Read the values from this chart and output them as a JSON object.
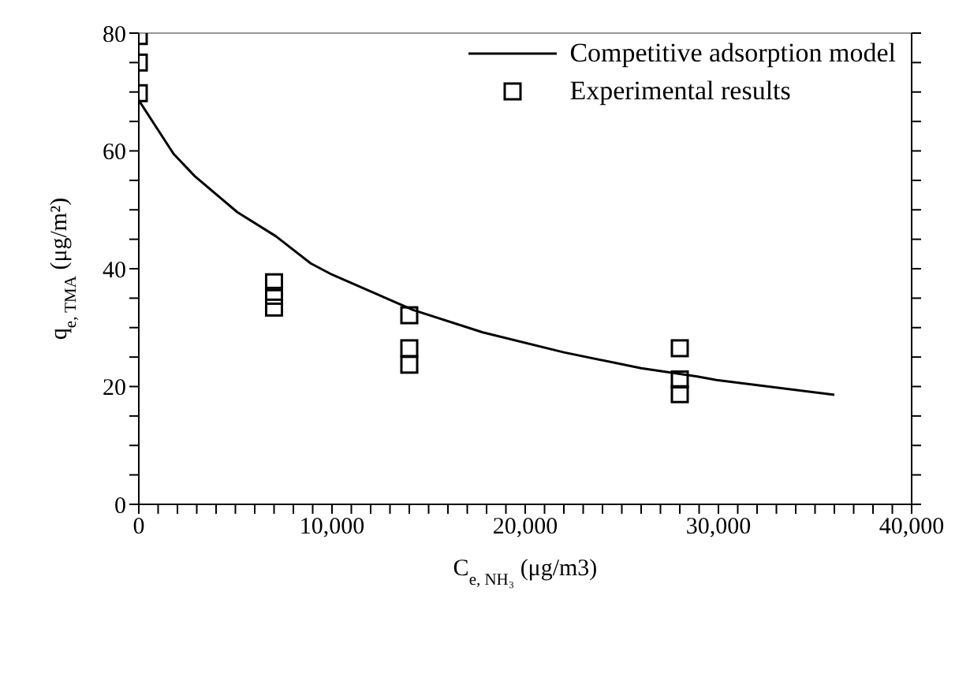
{
  "chart_data": {
    "type": "scatter",
    "xlabel": "C$_{e, NH₃}$ (μg/m3)",
    "ylabel": "q$_{e, TMA}$ (μg/m²)",
    "xlim": [
      0,
      40000
    ],
    "xticks": [
      0,
      {
        "value": 1000,
        "label": null
      },
      {
        "value": 2000,
        "label": null
      },
      {
        "value": 3000,
        "label": null
      },
      {
        "value": 4000,
        "label": null
      },
      {
        "value": 5000,
        "label": null
      },
      {
        "value": 6000,
        "label": null
      },
      {
        "value": 7000,
        "label": null
      },
      {
        "value": 8000,
        "label": null
      },
      {
        "value": 9000,
        "label": null
      },
      {
        "value": 10000,
        "label": "10,000"
      },
      {
        "value": 11000,
        "label": null
      },
      {
        "value": 12000,
        "label": null
      },
      {
        "value": 13000,
        "label": null
      },
      {
        "value": 14000,
        "label": null
      },
      {
        "value": 15000,
        "label": null
      },
      {
        "value": 16000,
        "label": null
      },
      {
        "value": 17000,
        "label": null
      },
      {
        "value": 18000,
        "label": null
      },
      {
        "value": 19000,
        "label": null
      },
      {
        "value": 20000,
        "label": "20,000"
      },
      {
        "value": 21000,
        "label": null
      },
      {
        "value": 22000,
        "label": null
      },
      {
        "value": 23000,
        "label": null
      },
      {
        "value": 24000,
        "label": null
      },
      {
        "value": 25000,
        "label": null
      },
      {
        "value": 26000,
        "label": null
      },
      {
        "value": 27000,
        "label": null
      },
      {
        "value": 28000,
        "label": null
      },
      {
        "value": 29000,
        "label": null
      },
      {
        "value": 30000,
        "label": "30,000"
      },
      {
        "value": 31000,
        "label": null
      },
      {
        "value": 32000,
        "label": null
      },
      {
        "value": 33000,
        "label": null
      },
      {
        "value": 34000,
        "label": null
      },
      {
        "value": 35000,
        "label": null
      },
      {
        "value": 36000,
        "label": null
      },
      {
        "value": 37000,
        "label": null
      },
      {
        "value": 38000,
        "label": null
      },
      {
        "value": 39000,
        "label": null
      },
      {
        "value": 40000,
        "label": "40,000"
      }
    ],
    "ylim": [
      0,
      80
    ],
    "yticks": [
      0,
      {
        "value": 5,
        "label": null
      },
      {
        "value": 10,
        "label": null
      },
      {
        "value": 15,
        "label": null
      },
      20,
      {
        "value": 25,
        "label": null
      },
      {
        "value": 30,
        "label": null
      },
      {
        "value": 35,
        "label": null
      },
      40,
      {
        "value": 45,
        "label": null
      },
      {
        "value": 50,
        "label": null
      },
      {
        "value": 55,
        "label": null
      },
      60,
      {
        "value": 65,
        "label": null
      },
      {
        "value": 70,
        "label": null
      },
      {
        "value": 75,
        "label": null
      },
      80
    ],
    "grid": false,
    "legend": "top right",
    "series": [
      {
        "name": "Competitive adsorption model",
        "type": "line",
        "color": "#000000",
        "marker": "none",
        "line_style": "solid",
        "x": [
          0,
          1800,
          2900,
          5100,
          7100,
          8900,
          10000,
          12100,
          14200,
          17800,
          22000,
          26000,
          28900,
          29900,
          36000
        ],
        "values": [
          68.6,
          59.5,
          55.7,
          49.6,
          45.5,
          40.9,
          39,
          36,
          33,
          29.2,
          25.8,
          23.1,
          21.7,
          21.1,
          18.6
        ]
      },
      {
        "name": "Experimental results",
        "color": "#000000",
        "marker": "square",
        "x": [
          0,
          0,
          0,
          7000,
          7000,
          7000,
          14000,
          14000,
          14000,
          28000,
          28000,
          28000
        ],
        "values": [
          79.5,
          75,
          69.8,
          37.7,
          35.4,
          33.4,
          32.1,
          26.5,
          23.7,
          26.5,
          21.2,
          18.7
        ]
      }
    ]
  }
}
